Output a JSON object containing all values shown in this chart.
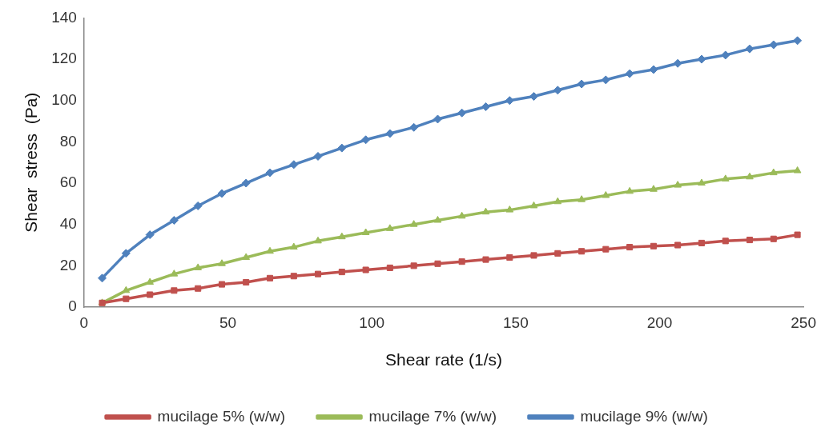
{
  "chart_data": {
    "type": "line",
    "xlabel": "Shear rate (1/s)",
    "ylabel": "Shear  stress  (Pa)",
    "x": [
      6.3,
      14.6,
      22.9,
      31.3,
      39.6,
      47.9,
      56.3,
      64.6,
      72.9,
      81.3,
      89.6,
      97.9,
      106.3,
      114.6,
      122.9,
      131.3,
      139.6,
      147.9,
      156.3,
      164.6,
      172.9,
      181.3,
      189.6,
      197.9,
      206.3,
      214.6,
      222.9,
      231.3,
      239.6,
      247.9
    ],
    "xlim": [
      0,
      250
    ],
    "xticks": [
      0,
      50,
      100,
      150,
      200,
      250
    ],
    "ylim": [
      0,
      140
    ],
    "yticks": [
      0,
      20,
      40,
      60,
      80,
      100,
      120,
      140
    ],
    "grid": false,
    "legend": "bottom",
    "line_style": "solid",
    "series": [
      {
        "name": "mucilage 5% (w/w)",
        "color": "#c0504d",
        "marker": "square",
        "values": [
          2,
          4,
          6,
          8,
          9,
          11,
          12,
          14,
          15,
          16,
          17,
          18,
          19,
          20,
          21,
          22,
          23,
          24,
          25,
          26,
          27,
          28,
          29,
          29.5,
          30,
          31,
          32,
          32.5,
          33,
          35
        ]
      },
      {
        "name": "mucilage 7% (w/w)",
        "color": "#9bbb59",
        "marker": "triangle",
        "values": [
          2,
          8,
          12,
          16,
          19,
          21,
          24,
          27,
          29,
          32,
          34,
          36,
          38,
          40,
          42,
          44,
          46,
          47,
          49,
          51,
          52,
          54,
          56,
          57,
          59,
          60,
          62,
          63,
          65,
          66
        ]
      },
      {
        "name": "mucilage 9% (w/w)",
        "color": "#4f81bd",
        "marker": "diamond",
        "values": [
          14,
          26,
          35,
          42,
          49,
          55,
          60,
          65,
          69,
          73,
          77,
          81,
          84,
          87,
          91,
          94,
          97,
          100,
          102,
          105,
          108,
          110,
          113,
          115,
          118,
          120,
          122,
          125,
          127,
          129
        ]
      }
    ]
  }
}
